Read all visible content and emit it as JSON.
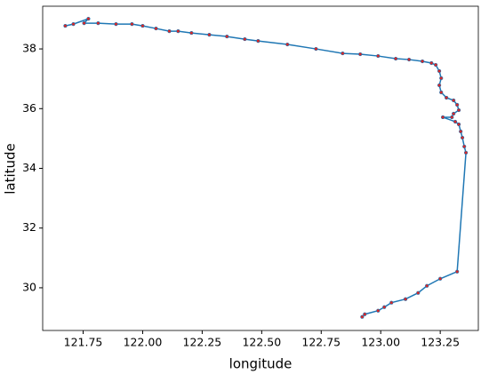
{
  "chart_data": {
    "type": "line",
    "x_label": "longitude",
    "y_label": "latitude",
    "xlim": [
      121.58,
      123.41
    ],
    "ylim": [
      28.57,
      39.43
    ],
    "xticks": [
      {
        "value": 121.75,
        "label": "121.75"
      },
      {
        "value": 122.0,
        "label": "122.00"
      },
      {
        "value": 122.25,
        "label": "122.25"
      },
      {
        "value": 122.5,
        "label": "122.50"
      },
      {
        "value": 122.75,
        "label": "122.75"
      },
      {
        "value": 123.0,
        "label": "123.00"
      },
      {
        "value": 123.25,
        "label": "123.25"
      }
    ],
    "yticks": [
      30,
      32,
      34,
      36,
      38
    ],
    "series": [
      {
        "color": "#1f77b4",
        "marker_color": "#d62728",
        "x": [
          121.675,
          121.709,
          121.772,
          121.754,
          121.813,
          121.888,
          121.955,
          122.0,
          122.056,
          122.112,
          122.149,
          122.205,
          122.28,
          122.354,
          122.429,
          122.485,
          122.608,
          122.728,
          122.84,
          122.914,
          122.989,
          123.063,
          123.119,
          123.175,
          123.213,
          123.231,
          123.246,
          123.254,
          123.246,
          123.254,
          123.276,
          123.306,
          123.321,
          123.328,
          123.306,
          123.299,
          123.261,
          123.313,
          123.328,
          123.336,
          123.343,
          123.351,
          123.358,
          123.321,
          123.25,
          123.194,
          123.157,
          123.104,
          123.045,
          123.015,
          122.989,
          122.933,
          122.922
        ],
        "values": [
          38.773,
          38.832,
          39.01,
          38.862,
          38.862,
          38.832,
          38.832,
          38.773,
          38.684,
          38.594,
          38.594,
          38.535,
          38.475,
          38.416,
          38.327,
          38.267,
          38.149,
          38.0,
          37.851,
          37.822,
          37.762,
          37.673,
          37.643,
          37.584,
          37.525,
          37.465,
          37.257,
          37.019,
          36.782,
          36.544,
          36.366,
          36.276,
          36.128,
          35.949,
          35.831,
          35.712,
          35.712,
          35.563,
          35.474,
          35.236,
          35.028,
          34.731,
          34.523,
          30.541,
          30.303,
          30.065,
          29.828,
          29.62,
          29.501,
          29.352,
          29.233,
          29.114,
          29.025
        ]
      }
    ]
  }
}
